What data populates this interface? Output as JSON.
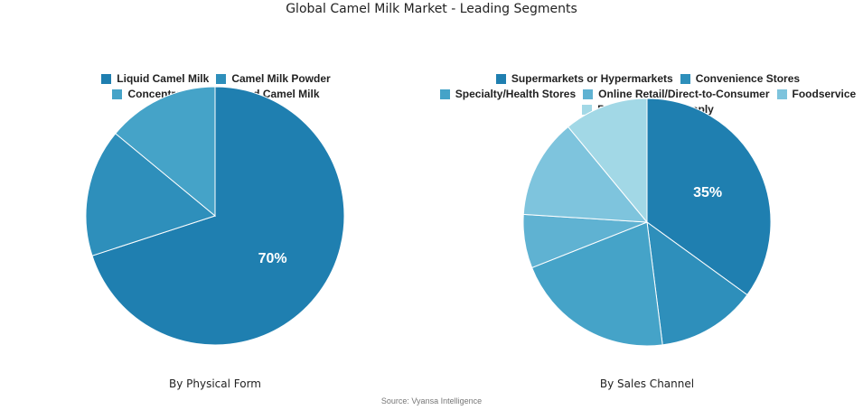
{
  "title": "Global Camel Milk Market - Leading Segments",
  "source": "Source: Vyansa Intelligence",
  "chart_data": [
    {
      "type": "pie",
      "subtitle": "By Physical Form",
      "legend_placement": "top",
      "categories": [
        "Liquid Camel Milk",
        "Camel Milk Powder",
        "Concentrated/Condensed Camel Milk"
      ],
      "values": [
        70,
        16,
        14
      ],
      "colors": [
        "#1f7fb0",
        "#2e8fbb",
        "#45a3c8"
      ],
      "data_labels": [
        "70%",
        "",
        ""
      ]
    },
    {
      "type": "pie",
      "subtitle": "By Sales Channel",
      "legend_placement": "top",
      "categories": [
        "Supermarkets or Hypermarkets",
        "Convenience Stores",
        "Specialty/Health Stores",
        "Online Retail/Direct-to-Consumer",
        "Foodservice",
        "B2B Ingredient Supply"
      ],
      "values": [
        35,
        13,
        21,
        7,
        13,
        11
      ],
      "colors": [
        "#1f7fb0",
        "#2e8fbb",
        "#45a3c8",
        "#5fb2d2",
        "#7ec4dd",
        "#a2d8e6"
      ],
      "data_labels": [
        "35%",
        "",
        "",
        "",
        "",
        ""
      ]
    }
  ]
}
